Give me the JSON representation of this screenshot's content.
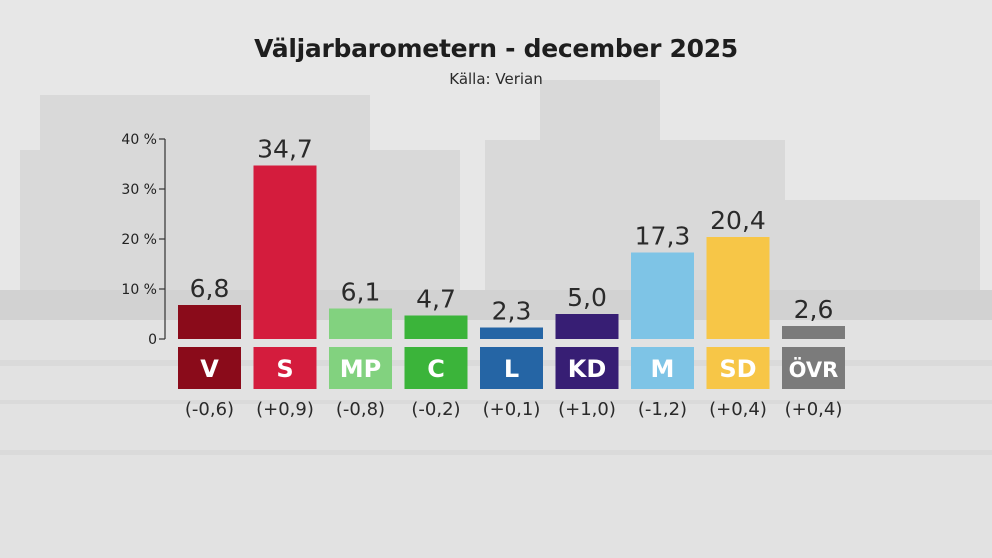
{
  "header": {
    "title": "Väljarbarometern - december 2025",
    "source": "Källa: Verian"
  },
  "chart_data": {
    "type": "bar",
    "title": "Väljarbarometern - december 2025",
    "subtitle": "Källa: Verian",
    "categories": [
      "V",
      "S",
      "MP",
      "C",
      "L",
      "KD",
      "M",
      "SD",
      "ÖVR"
    ],
    "values": [
      6.8,
      34.7,
      6.1,
      4.7,
      2.3,
      5.0,
      17.3,
      20.4,
      2.6
    ],
    "value_labels": [
      "6,8",
      "34,7",
      "6,1",
      "4,7",
      "2,3",
      "5,0",
      "17,3",
      "20,4",
      "2,6"
    ],
    "changes": [
      "(-0,6)",
      "(+0,9)",
      "(-0,8)",
      "(-0,2)",
      "(+0,1)",
      "(+1,0)",
      "(-1,2)",
      "(+0,4)",
      "(+0,4)"
    ],
    "colors": [
      "#8a0b1a",
      "#d41c3d",
      "#82d27f",
      "#3bb43a",
      "#2565a5",
      "#371e74",
      "#7ec4e6",
      "#f7c647",
      "#7b7b7b"
    ],
    "ylim": [
      0,
      40
    ],
    "yticks": [
      0,
      10,
      20,
      30,
      40
    ],
    "ytick_labels": [
      "0",
      "10 %",
      "20 %",
      "30 %",
      "40 %"
    ],
    "grid": false,
    "legend": "none"
  }
}
